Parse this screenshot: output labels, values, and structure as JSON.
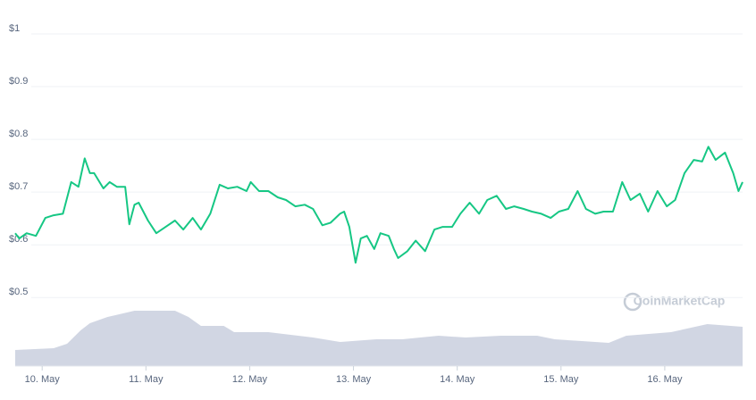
{
  "chart_data": {
    "type": "line",
    "watermark": "CoinMarketCap",
    "color": "#16c784",
    "grid": true,
    "x": [
      9.74,
      9.78,
      9.85,
      9.94,
      10.03,
      10.11,
      10.2,
      10.28,
      10.35,
      10.41,
      10.46,
      10.5,
      10.59,
      10.65,
      10.72,
      10.8,
      10.84,
      10.89,
      10.93,
      11.02,
      11.1,
      11.19,
      11.28,
      11.36,
      11.45,
      11.53,
      11.62,
      11.71,
      11.79,
      11.88,
      11.97,
      12.01,
      12.09,
      12.18,
      12.27,
      12.35,
      12.44,
      12.53,
      12.61,
      12.7,
      12.78,
      12.87,
      12.91,
      12.96,
      13.02,
      13.07,
      13.13,
      13.2,
      13.26,
      13.34,
      13.39,
      13.43,
      13.52,
      13.6,
      13.69,
      13.78,
      13.86,
      13.95,
      14.03,
      14.12,
      14.21,
      14.29,
      14.38,
      14.47,
      14.55,
      14.64,
      14.72,
      14.81,
      14.9,
      14.98,
      15.07,
      15.16,
      15.24,
      15.33,
      15.41,
      15.5,
      15.59,
      15.67,
      15.76,
      15.84,
      15.93,
      16.02,
      16.1,
      16.19,
      16.28,
      16.36,
      16.42,
      16.49,
      16.58,
      16.66,
      16.71,
      16.75
    ],
    "values": [
      0.622,
      0.612,
      0.622,
      0.617,
      0.651,
      0.656,
      0.659,
      0.719,
      0.71,
      0.764,
      0.736,
      0.736,
      0.707,
      0.719,
      0.71,
      0.71,
      0.639,
      0.676,
      0.68,
      0.646,
      0.622,
      0.634,
      0.646,
      0.629,
      0.651,
      0.629,
      0.659,
      0.714,
      0.707,
      0.71,
      0.702,
      0.719,
      0.702,
      0.702,
      0.69,
      0.685,
      0.673,
      0.676,
      0.668,
      0.637,
      0.642,
      0.659,
      0.663,
      0.634,
      0.566,
      0.612,
      0.617,
      0.592,
      0.622,
      0.617,
      0.592,
      0.575,
      0.588,
      0.608,
      0.588,
      0.629,
      0.634,
      0.634,
      0.659,
      0.68,
      0.659,
      0.685,
      0.693,
      0.668,
      0.673,
      0.668,
      0.663,
      0.659,
      0.651,
      0.663,
      0.668,
      0.702,
      0.668,
      0.659,
      0.663,
      0.663,
      0.719,
      0.685,
      0.697,
      0.663,
      0.702,
      0.673,
      0.685,
      0.736,
      0.761,
      0.758,
      0.786,
      0.761,
      0.775,
      0.736,
      0.702,
      0.719
    ],
    "xlim": [
      9.74,
      16.75
    ],
    "xticks": [
      {
        "value": 10,
        "label": "10. May"
      },
      {
        "value": 11,
        "label": "11. May"
      },
      {
        "value": 12,
        "label": "12. May"
      },
      {
        "value": 13,
        "label": "13. May"
      },
      {
        "value": 14,
        "label": "14. May"
      },
      {
        "value": 15,
        "label": "15. May"
      },
      {
        "value": 16,
        "label": "16. May"
      }
    ],
    "ylim": [
      0.37,
      1.0
    ],
    "yticks": [
      {
        "value": 0.5,
        "label": "$0.5"
      },
      {
        "value": 0.6,
        "label": "$0.6"
      },
      {
        "value": 0.7,
        "label": "$0.7"
      },
      {
        "value": 0.8,
        "label": "$0.8"
      },
      {
        "value": 0.9,
        "label": "$0.9"
      },
      {
        "value": 1,
        "label": "$1"
      }
    ],
    "volume": {
      "color": "#d1d6e3",
      "axis": "y2",
      "y2lim": [
        0,
        100
      ],
      "x": [
        9.74,
        10.11,
        10.24,
        10.37,
        10.46,
        10.63,
        10.89,
        11.28,
        11.41,
        11.53,
        11.75,
        11.85,
        12.18,
        12.61,
        12.87,
        13.22,
        13.47,
        13.82,
        14.08,
        14.42,
        14.77,
        14.94,
        15.46,
        15.63,
        16.06,
        16.41,
        16.75
      ],
      "values": [
        18,
        20,
        25,
        40,
        48,
        55,
        62,
        62,
        55,
        45,
        45,
        38,
        38,
        32,
        27,
        30,
        30,
        34,
        32,
        34,
        34,
        30,
        26,
        34,
        38,
        47,
        44
      ]
    }
  }
}
